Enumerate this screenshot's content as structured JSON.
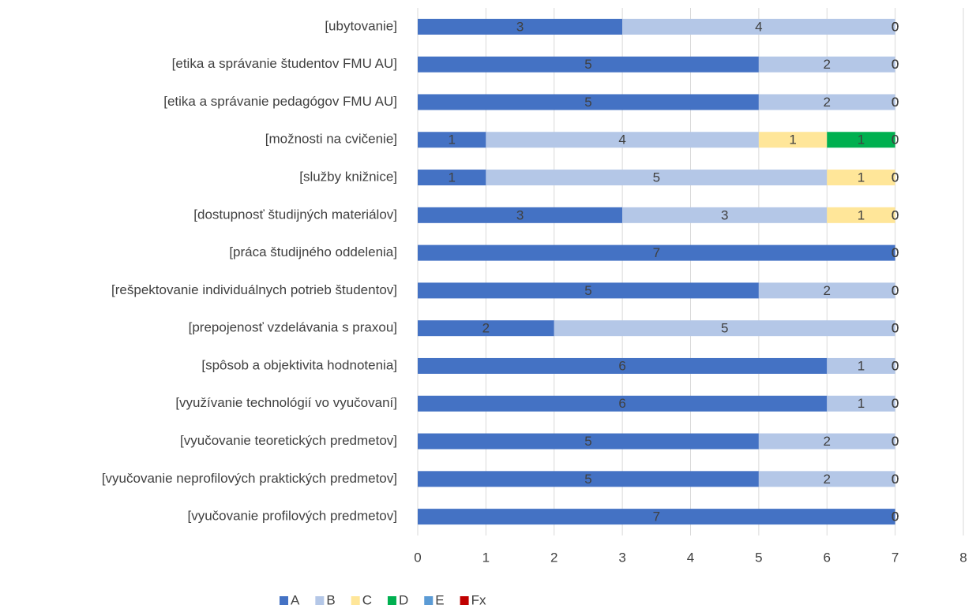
{
  "chart_data": {
    "type": "stacked_barh",
    "categories": [
      "[ubytovanie]",
      "[etika a správanie študentov FMU AU]",
      "[etika a správanie pedagógov FMU AU]",
      "[možnosti na cvičenie]",
      "[služby knižnice]",
      "[dostupnosť študijných materiálov]",
      "[práca študijného oddelenia]",
      "[rešpektovanie individuálnych potrieb študentov]",
      "[prepojenosť vzdelávania s praxou]",
      "[spôsob a objektivita hodnotenia]",
      "[využívanie technológií vo vyučovaní]",
      "[vyučovanie teoretických predmetov]",
      "[vyučovanie neprofilových praktických predmetov]",
      "[vyučovanie profilových predmetov]"
    ],
    "series": [
      {
        "name": "A",
        "color": "#4472c4",
        "values": [
          3,
          5,
          5,
          1,
          1,
          3,
          7,
          5,
          2,
          6,
          6,
          5,
          5,
          7
        ]
      },
      {
        "name": "B",
        "color": "#b4c7e7",
        "values": [
          4,
          2,
          2,
          4,
          5,
          3,
          0,
          2,
          5,
          1,
          1,
          2,
          2,
          0
        ]
      },
      {
        "name": "C",
        "color": "#ffe699",
        "values": [
          0,
          0,
          0,
          1,
          1,
          1,
          0,
          0,
          0,
          0,
          0,
          0,
          0,
          0
        ]
      },
      {
        "name": "D",
        "color": "#00b050",
        "values": [
          0,
          0,
          0,
          1,
          0,
          0,
          0,
          0,
          0,
          0,
          0,
          0,
          0,
          0
        ]
      },
      {
        "name": "E",
        "color": "#5b9bd5",
        "values": [
          0,
          0,
          0,
          0,
          0,
          0,
          0,
          0,
          0,
          0,
          0,
          0,
          0,
          0
        ]
      },
      {
        "name": "Fx",
        "color": "#c00000",
        "values": [
          0,
          0,
          0,
          0,
          0,
          0,
          0,
          0,
          0,
          0,
          0,
          0,
          0,
          0
        ]
      }
    ],
    "xlim": [
      0,
      8
    ],
    "xticks": [
      0,
      1,
      2,
      3,
      4,
      5,
      6,
      7,
      8
    ],
    "grid": true,
    "legend": "bottom"
  }
}
